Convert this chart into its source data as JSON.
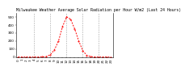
{
  "title": "Milwaukee Weather Average Solar Radiation per Hour W/m2 (Last 24 Hours)",
  "x_values": [
    0,
    1,
    2,
    3,
    4,
    5,
    6,
    7,
    8,
    9,
    10,
    11,
    12,
    13,
    14,
    15,
    16,
    17,
    18,
    19,
    20,
    21,
    22,
    23
  ],
  "y_values": [
    0,
    0,
    0,
    0,
    0,
    0,
    2,
    5,
    30,
    90,
    200,
    380,
    500,
    470,
    350,
    200,
    80,
    20,
    5,
    1,
    0,
    0,
    0,
    0
  ],
  "ylim": [
    0,
    550
  ],
  "xlim": [
    -0.5,
    23.5
  ],
  "y_ticks": [
    0,
    100,
    200,
    300,
    400,
    500
  ],
  "x_ticks": [
    0,
    1,
    2,
    3,
    4,
    5,
    6,
    7,
    8,
    9,
    10,
    11,
    12,
    13,
    14,
    15,
    16,
    17,
    18,
    19,
    20,
    21,
    22,
    23
  ],
  "line_color": "#ff0000",
  "grid_color": "#999999",
  "bg_color": "#ffffff",
  "title_fontsize": 3.5,
  "tick_fontsize": 3.0,
  "grid_x_positions": [
    4,
    8,
    12,
    16,
    20
  ]
}
